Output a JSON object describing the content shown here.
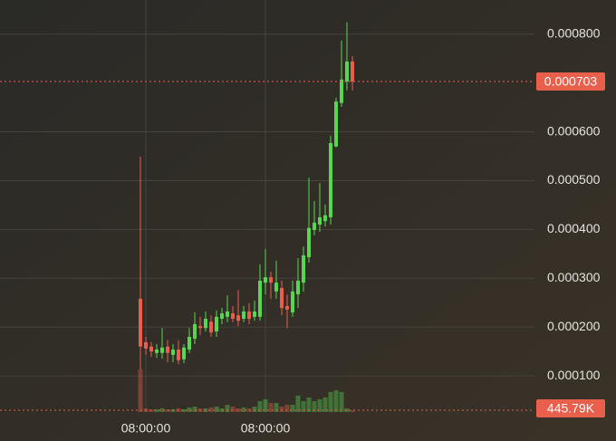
{
  "chart_data": {
    "type": "candlestick",
    "categories": [
      null,
      "08:00:00",
      null,
      null,
      null,
      null,
      null,
      null,
      null,
      null,
      null,
      null,
      null,
      null,
      null,
      null,
      null,
      null,
      null,
      null,
      null,
      null,
      null,
      "08:00:00",
      null,
      null,
      null,
      null,
      null,
      null,
      null,
      null,
      null,
      null,
      null,
      null,
      null,
      null,
      null,
      null
    ],
    "open": [
      0.000258,
      0.000169,
      0.00016,
      0.000147,
      0.000147,
      0.00016,
      0.000143,
      0.000154,
      0.000134,
      0.000154,
      0.000176,
      0.000202,
      0.000198,
      0.000211,
      0.000191,
      0.000217,
      0.000221,
      0.000228,
      0.000224,
      0.000217,
      0.000232,
      0.000221,
      0.000221,
      0.000291,
      0.000302,
      0.000273,
      0.00028,
      0.000243,
      0.00023,
      0.000267,
      0.000291,
      0.000343,
      0.000399,
      0.00041,
      0.000417,
      0.000425,
      0.00057,
      0.000659,
      0.000703,
      0.000744
    ],
    "high": [
      0.000549,
      0.00018,
      0.000169,
      0.000165,
      0.000198,
      0.000173,
      0.000165,
      0.000173,
      0.000165,
      0.000198,
      0.00023,
      0.000221,
      0.000232,
      0.000224,
      0.000234,
      0.000239,
      0.000265,
      0.000243,
      0.000276,
      0.000243,
      0.000249,
      0.000254,
      0.000328,
      0.00036,
      0.000313,
      0.000336,
      0.000295,
      0.000267,
      0.000295,
      0.000341,
      0.000365,
      0.000506,
      0.000458,
      0.000495,
      0.000451,
      0.000592,
      0.00067,
      0.000787,
      0.000824,
      0.000755
    ],
    "low": [
      0.000113,
      0.000143,
      0.000139,
      0.000137,
      0.000135,
      0.000128,
      0.000128,
      0.000124,
      0.000126,
      0.000147,
      0.000165,
      0.000184,
      0.000191,
      0.00018,
      0.00018,
      0.000206,
      0.00021,
      0.00021,
      0.000202,
      0.00021,
      0.000206,
      0.000213,
      0.000213,
      0.000267,
      0.000258,
      0.000258,
      0.000224,
      0.000198,
      0.000221,
      0.000239,
      0.000273,
      0.000332,
      0.000388,
      0.000395,
      0.000406,
      0.00041,
      0.000568,
      0.000651,
      0.000685,
      0.000685
    ],
    "close": [
      0.00016,
      0.000156,
      0.00015,
      0.000154,
      0.000158,
      0.000147,
      0.000154,
      0.000132,
      0.000158,
      0.00018,
      0.000206,
      0.000198,
      0.000217,
      0.000189,
      0.000221,
      0.000228,
      0.000232,
      0.000217,
      0.000213,
      0.000232,
      0.000217,
      0.000232,
      0.000295,
      0.000302,
      0.000291,
      0.000291,
      0.000239,
      0.000236,
      0.000273,
      0.000295,
      0.000347,
      0.000403,
      0.000414,
      0.000425,
      0.000429,
      0.000577,
      0.000662,
      0.000707,
      0.000744,
      0.000703
    ],
    "up_color": "#58d650",
    "down_color": "#e8604c",
    "ylim": [
      0,
      0.00087
    ],
    "yticks": [
      {
        "value": 0.0001,
        "label": "0.000100"
      },
      {
        "value": 0.0002,
        "label": "0.000200"
      },
      {
        "value": 0.0003,
        "label": "0.000300"
      },
      {
        "value": 0.0004,
        "label": "0.000400"
      },
      {
        "value": 0.0005,
        "label": "0.000500"
      },
      {
        "value": 0.0006,
        "label": "0.000600"
      },
      {
        "value": 0.0008,
        "label": "0.000800"
      }
    ],
    "grid": true,
    "last_price": {
      "value": 0.000703,
      "label": "0.000703"
    },
    "volume": {
      "values": [
        10481000,
        892000,
        669000,
        669000,
        892000,
        669000,
        669000,
        892000,
        669000,
        1115000,
        1338000,
        892000,
        892000,
        1115000,
        1338000,
        892000,
        1784000,
        1338000,
        892000,
        1115000,
        892000,
        1338000,
        2676000,
        3122000,
        2230000,
        2230000,
        1338000,
        1784000,
        1784000,
        4014000,
        2676000,
        3568000,
        2676000,
        3122000,
        3568000,
        4906000,
        5352000,
        4906000,
        892000,
        445790
      ],
      "ylim": [
        0,
        12000000
      ],
      "last_label": {
        "value": 445790,
        "label": "445.79K"
      }
    }
  }
}
